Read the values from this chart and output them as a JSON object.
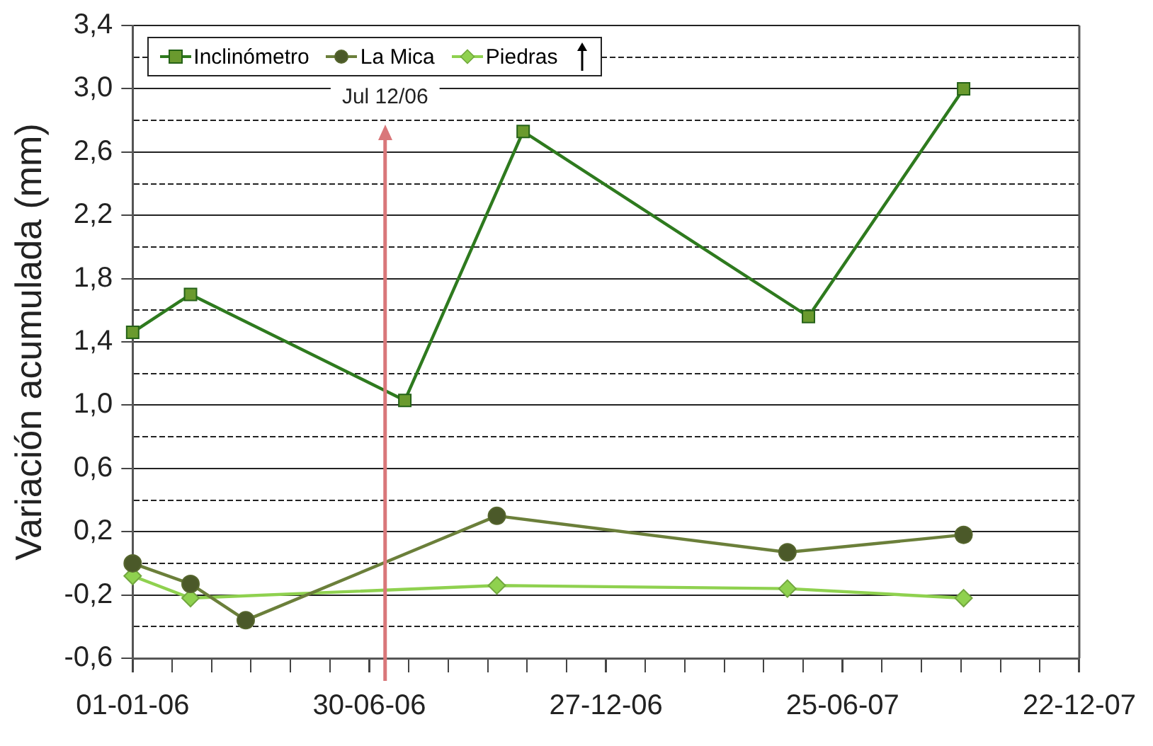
{
  "chart_data": {
    "type": "line",
    "ylabel": "Variación acumulada (mm)",
    "xlim": [
      "2006-01-01",
      "2007-12-22"
    ],
    "xticks": [
      {
        "value": "2006-01-01",
        "label": "01-01-06"
      },
      {
        "value": "2006-01-31",
        "label": null
      },
      {
        "value": "2006-03-02",
        "label": null
      },
      {
        "value": "2006-04-01",
        "label": null
      },
      {
        "value": "2006-05-01",
        "label": null
      },
      {
        "value": "2006-05-31",
        "label": null
      },
      {
        "value": "2006-06-30",
        "label": "30-06-06"
      },
      {
        "value": "2006-07-30",
        "label": null
      },
      {
        "value": "2006-08-29",
        "label": null
      },
      {
        "value": "2006-09-28",
        "label": null
      },
      {
        "value": "2006-10-28",
        "label": null
      },
      {
        "value": "2006-11-27",
        "label": null
      },
      {
        "value": "2006-12-27",
        "label": "27-12-06"
      },
      {
        "value": "2007-01-26",
        "label": null
      },
      {
        "value": "2007-02-25",
        "label": null
      },
      {
        "value": "2007-03-27",
        "label": null
      },
      {
        "value": "2007-04-26",
        "label": null
      },
      {
        "value": "2007-05-26",
        "label": null
      },
      {
        "value": "2007-06-25",
        "label": "25-06-07"
      },
      {
        "value": "2007-07-25",
        "label": null
      },
      {
        "value": "2007-08-24",
        "label": null
      },
      {
        "value": "2007-09-23",
        "label": null
      },
      {
        "value": "2007-10-23",
        "label": null
      },
      {
        "value": "2007-11-22",
        "label": null
      },
      {
        "value": "2007-12-22",
        "label": "22-12-07"
      }
    ],
    "ylim": [
      -0.6,
      3.4
    ],
    "yticks": [
      {
        "value": -0.6,
        "label": "-0,6"
      },
      {
        "value": -0.4,
        "label": null
      },
      {
        "value": -0.2,
        "label": "-0,2"
      },
      {
        "value": 0,
        "label": null
      },
      {
        "value": 0.2,
        "label": "0,2"
      },
      {
        "value": 0.4,
        "label": null
      },
      {
        "value": 0.6,
        "label": "0,6"
      },
      {
        "value": 0.8,
        "label": null
      },
      {
        "value": 1.0,
        "label": "1,0"
      },
      {
        "value": 1.2,
        "label": null
      },
      {
        "value": 1.4,
        "label": "1,4"
      },
      {
        "value": 1.6,
        "label": null
      },
      {
        "value": 1.8,
        "label": "1,8"
      },
      {
        "value": 2.0,
        "label": null
      },
      {
        "value": 2.2,
        "label": "2,2"
      },
      {
        "value": 2.4,
        "label": null
      },
      {
        "value": 2.6,
        "label": "2,6"
      },
      {
        "value": 2.8,
        "label": null
      },
      {
        "value": 3.0,
        "label": "3,0"
      },
      {
        "value": 3.2,
        "label": null
      },
      {
        "value": 3.4,
        "label": "3,4"
      }
    ],
    "grid": "y",
    "legend": "top left",
    "line_style": "solid",
    "series": [
      {
        "name": "Inclinómetro",
        "color": "#2e7a1e",
        "marker": "square",
        "x": [
          "2006-01-01",
          "2006-02-14",
          "2006-07-27",
          "2006-10-25",
          "2007-05-30",
          "2007-09-25"
        ],
        "values": [
          1.46,
          1.7,
          1.03,
          2.73,
          1.56,
          3.0
        ]
      },
      {
        "name": "La Mica",
        "color": "#6b7f3a",
        "marker": "circle",
        "x": [
          "2006-01-01",
          "2006-02-14",
          "2006-03-28",
          "2006-10-05",
          "2007-05-14",
          "2007-09-25"
        ],
        "values": [
          0.0,
          -0.13,
          -0.36,
          0.3,
          0.07,
          0.18
        ]
      },
      {
        "name": "Piedras",
        "color": "#8fd14f",
        "marker": "diamond",
        "x": [
          "2006-01-01",
          "2006-02-14",
          "2006-10-05",
          "2007-05-14",
          "2007-09-25"
        ],
        "values": [
          -0.08,
          -0.22,
          -0.14,
          -0.16,
          -0.22
        ]
      }
    ],
    "ref_lines": [
      {
        "axis": "x",
        "value": "2006-07-12",
        "label": "Jul 12/06",
        "color": "#d9777a"
      }
    ]
  }
}
